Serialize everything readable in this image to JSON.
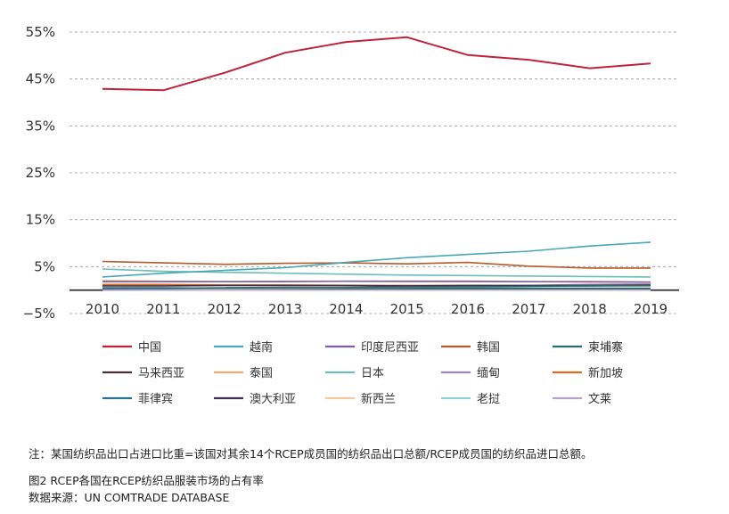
{
  "chart_data": {
    "type": "line",
    "title": "",
    "xlabel": "",
    "ylabel": "",
    "x": [
      2010,
      2011,
      2012,
      2013,
      2014,
      2015,
      2016,
      2017,
      2018,
      2019
    ],
    "x_tick_labels": [
      "2010",
      "2011",
      "2012",
      "2013",
      "2014",
      "2015",
      "2016",
      "2017",
      "2018",
      "2019"
    ],
    "y_ticks": [
      55,
      45,
      35,
      25,
      15,
      5,
      -5
    ],
    "y_tick_labels": [
      "55%",
      "45%",
      "35%",
      "25%",
      "15%",
      "5%",
      "−5%"
    ],
    "ylim": [
      -5,
      55
    ],
    "grid": "horizontal dashed",
    "legend_position": "bottom",
    "series": [
      {
        "name": "中国",
        "color": "#c0223a",
        "values": [
          42.9,
          42.6,
          46.3,
          50.6,
          52.9,
          53.9,
          50.1,
          49.1,
          47.3,
          48.3
        ]
      },
      {
        "name": "越南",
        "color": "#4aa7b8",
        "values": [
          2.8,
          3.6,
          4.2,
          4.8,
          5.9,
          6.9,
          7.6,
          8.3,
          9.4,
          10.2
        ]
      },
      {
        "name": "印度尼西亚",
        "color": "#7d5fa6",
        "values": [
          1.8,
          1.8,
          1.8,
          1.8,
          1.9,
          1.9,
          1.9,
          1.8,
          1.8,
          1.7
        ]
      },
      {
        "name": "韩国",
        "color": "#b55a2a",
        "values": [
          6.1,
          5.8,
          5.5,
          5.7,
          5.8,
          5.6,
          5.9,
          5.1,
          4.7,
          4.7
        ]
      },
      {
        "name": "柬埔寨",
        "color": "#2a6b70",
        "values": [
          0.4,
          0.4,
          0.5,
          0.6,
          0.6,
          0.7,
          0.7,
          0.8,
          0.9,
          1.0
        ]
      },
      {
        "name": "马来西亚",
        "color": "#4a2f3d",
        "values": [
          0.9,
          0.9,
          1.0,
          1.0,
          1.0,
          0.9,
          1.0,
          1.0,
          1.0,
          1.1
        ]
      },
      {
        "name": "泰国",
        "color": "#eda877",
        "values": [
          2.0,
          1.9,
          1.8,
          1.9,
          1.9,
          1.8,
          1.8,
          1.8,
          1.7,
          1.7
        ]
      },
      {
        "name": "日本",
        "color": "#6cbfb5",
        "values": [
          4.5,
          4.0,
          3.8,
          3.6,
          3.4,
          3.2,
          3.1,
          3.0,
          2.9,
          2.8
        ]
      },
      {
        "name": "缅甸",
        "color": "#9a86b8",
        "values": [
          0.1,
          0.2,
          0.3,
          0.4,
          0.5,
          0.6,
          0.8,
          1.0,
          1.2,
          1.3
        ]
      },
      {
        "name": "新加坡",
        "color": "#e06a1f",
        "values": [
          1.2,
          1.2,
          1.1,
          1.1,
          1.0,
          1.0,
          1.0,
          0.9,
          0.9,
          0.9
        ]
      },
      {
        "name": "菲律宾",
        "color": "#2d6f8e",
        "values": [
          0.5,
          0.5,
          0.4,
          0.4,
          0.4,
          0.4,
          0.4,
          0.4,
          0.4,
          0.4
        ]
      },
      {
        "name": "澳大利亚",
        "color": "#3e2f55",
        "values": [
          0.3,
          0.3,
          0.3,
          0.3,
          0.3,
          0.3,
          0.3,
          0.3,
          0.3,
          0.3
        ]
      },
      {
        "name": "新西兰",
        "color": "#f4c8a0",
        "values": [
          0.2,
          0.2,
          0.2,
          0.2,
          0.2,
          0.2,
          0.2,
          0.2,
          0.2,
          0.2
        ]
      },
      {
        "name": "老挝",
        "color": "#8fd0d2",
        "values": [
          0.1,
          0.1,
          0.1,
          0.1,
          0.1,
          0.1,
          0.1,
          0.1,
          0.1,
          0.1
        ]
      },
      {
        "name": "文莱",
        "color": "#b7a2cc",
        "values": [
          0.0,
          0.0,
          0.0,
          0.0,
          0.0,
          0.0,
          0.0,
          0.0,
          0.0,
          0.0
        ]
      }
    ]
  },
  "note": "注：某国纺织品出口占进口比重=该国对其余14个RCEP成员国的纺织品出口总额/RCEP成员国的纺织品进口总额。",
  "figure_title": "图2  RCEP各国在RCEP纺织品服装市场的占有率",
  "source": "数据来源：UN COMTRADE DATABASE"
}
